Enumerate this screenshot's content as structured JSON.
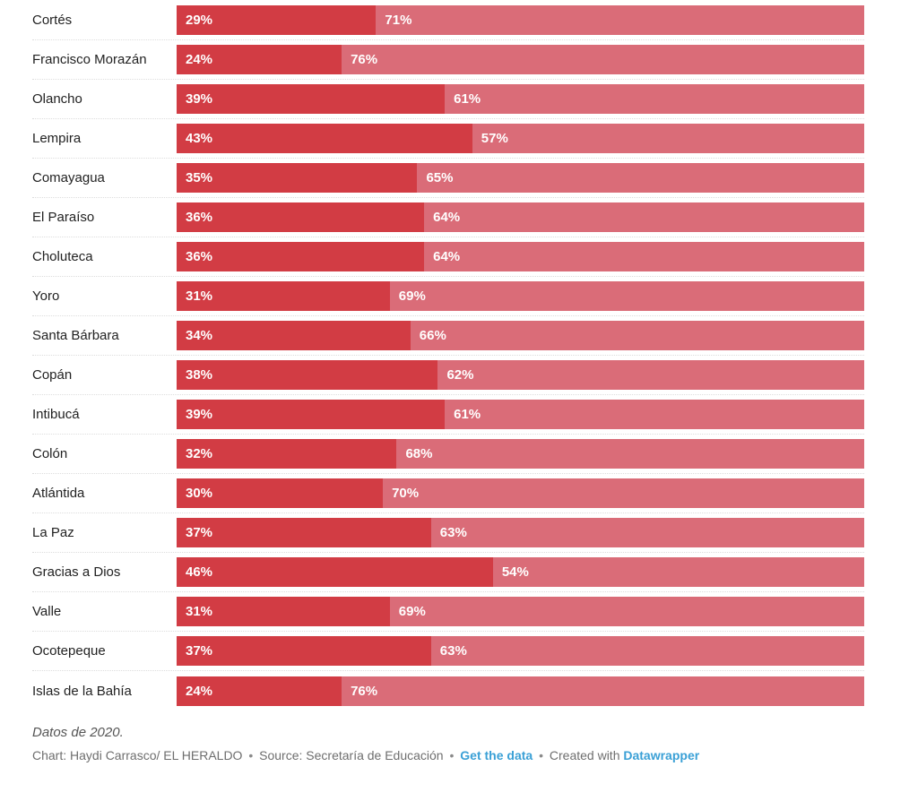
{
  "chart_data": {
    "type": "bar",
    "orientation": "horizontal",
    "stacked": true,
    "value_suffix": "%",
    "xlim": [
      0,
      100
    ],
    "categories": [
      "Cortés",
      "Francisco Morazán",
      "Olancho",
      "Lempira",
      "Comayagua",
      "El Paraíso",
      "Choluteca",
      "Yoro",
      "Santa Bárbara",
      "Copán",
      "Intibucá",
      "Colón",
      "Atlántida",
      "La Paz",
      "Gracias a Dios",
      "Valle",
      "Ocotepeque",
      "Islas de la Bahía"
    ],
    "series": [
      {
        "name": "series_1",
        "color": "#d23c44",
        "values": [
          29,
          24,
          39,
          43,
          35,
          36,
          36,
          31,
          34,
          38,
          39,
          32,
          30,
          37,
          46,
          31,
          37,
          24
        ]
      },
      {
        "name": "series_2",
        "color": "#da6c78",
        "values": [
          71,
          76,
          61,
          57,
          65,
          64,
          64,
          69,
          66,
          62,
          61,
          68,
          70,
          63,
          54,
          69,
          63,
          76
        ]
      }
    ],
    "legend": "none",
    "grid": "off",
    "value_label_color": "#ffffff"
  },
  "footer": {
    "note": "Datos de 2020.",
    "credit_chart": "Chart: Haydi Carrasco/ EL HERALDO",
    "sep1": "•",
    "credit_source": "Source: Secretaría de Educación",
    "sep2": "•",
    "get_data_label": "Get the data",
    "sep3": "•",
    "created_with_label": "Created with",
    "datawrapper_label": "Datawrapper"
  },
  "colors": {
    "bar_dark": "#d23c44",
    "bar_light": "#da6c78",
    "row_separator": "#dddddd",
    "category_label": "#222222",
    "note_text": "#555555",
    "credit_text": "#6e6e6e",
    "link": "#3aa0d6"
  }
}
